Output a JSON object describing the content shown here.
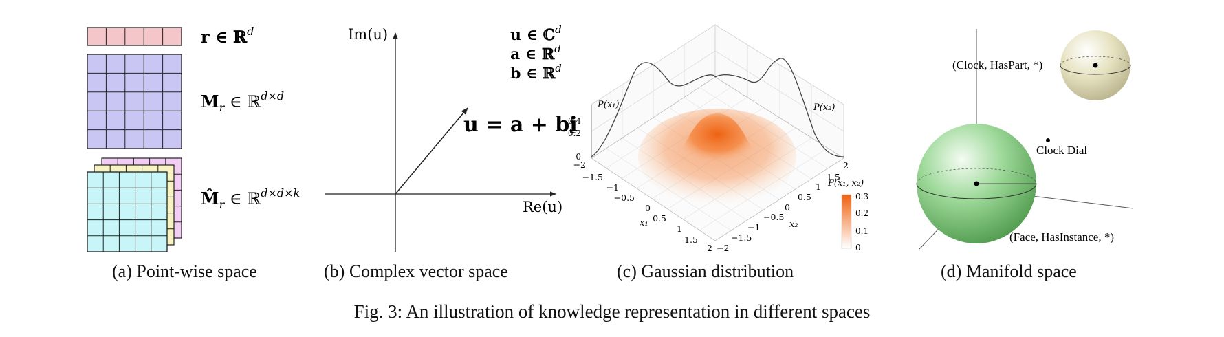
{
  "colors": {
    "vector_r": "#f5c6c9",
    "matrix_m": "#c9c6f3",
    "tensor_front": "#c8f6f8",
    "tensor_mid": "#f7f3c4",
    "tensor_back": "#f2cdf3",
    "gaussian": "#f06a1c",
    "manifold_green": "#8fd48a",
    "manifold_beige": "#ece8c8"
  },
  "panel_a": {
    "label_r": "r ∈ ℝ",
    "label_r_sup": "d",
    "label_m": "M",
    "label_m_sub": "r",
    "label_m_rest": " ∈ ℝ",
    "label_m_sup": "d×d",
    "label_t": "M̂",
    "label_t_sub": "r",
    "label_t_rest": " ∈ ℝ",
    "label_t_sup": "d×d×k",
    "caption": "(a) Point-wise space"
  },
  "panel_b": {
    "im_label": "Im(u)",
    "re_label": "Re(u)",
    "def_u": "u ∈ ℂ",
    "def_u_sup": "d",
    "def_a": "a ∈ ℝ",
    "def_a_sup": "d",
    "def_b": "b ∈ ℝ",
    "def_b_sup": "d",
    "equation": "u = a + bi",
    "caption": "(b) Complex vector space"
  },
  "panel_c": {
    "p_x1": "P(x₁)",
    "p_x2": "P(x₂)",
    "p_axis": "P",
    "p_ticks": [
      "0",
      "0.2",
      "0.4"
    ],
    "x1_label": "x₁",
    "x2_label": "x₂",
    "x1_ticks": [
      "−2",
      "−1.5",
      "−1",
      "−0.5",
      "0",
      "0.5",
      "1",
      "1.5",
      "2"
    ],
    "x2_ticks": [
      "−2",
      "−1.5",
      "−1",
      "−0.5",
      "0",
      "0.5",
      "1",
      "1.5",
      "2"
    ],
    "colorbar_title": "P(x₁, x₂)",
    "colorbar_ticks": [
      "0.3",
      "0.2",
      "0.1",
      "0"
    ],
    "caption": "(c) Gaussian distribution"
  },
  "panel_d": {
    "label_hasPart": "(Clock, HasPart, *)",
    "label_clockDial": "Clock Dial",
    "label_hasInstance": "(Face, HasInstance, *)",
    "caption": "(d) Manifold space"
  },
  "figure_caption": "Fig. 3: An illustration of knowledge representation in different spaces"
}
